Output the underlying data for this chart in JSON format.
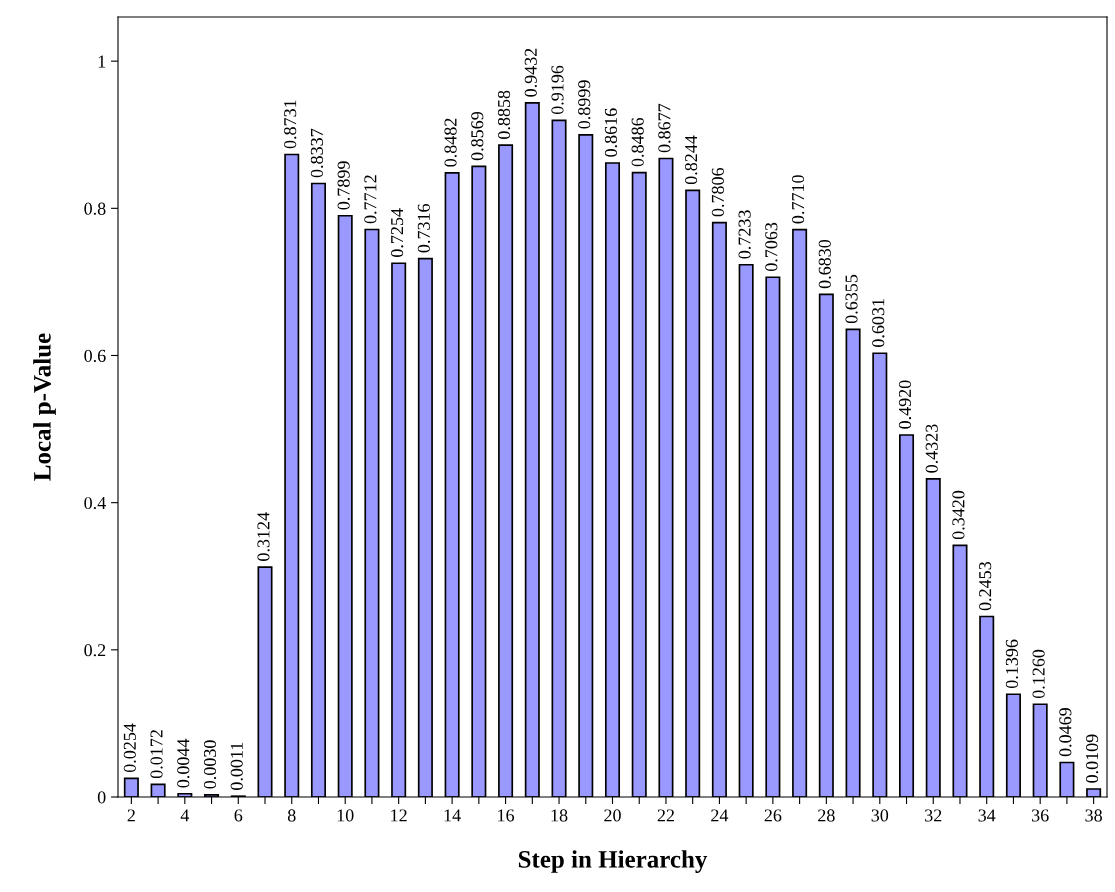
{
  "chart_data": {
    "type": "bar",
    "xlabel": "Step in Hierarchy",
    "ylabel": "Local p-Value",
    "categories": [
      "2",
      null,
      "4",
      null,
      "6",
      null,
      "8",
      null,
      "10",
      null,
      "12",
      null,
      "14",
      null,
      "16",
      null,
      "18",
      null,
      "20",
      null,
      "22",
      null,
      "24",
      null,
      "26",
      null,
      "28",
      null,
      "30",
      null,
      "32",
      null,
      "34",
      null,
      "36",
      null,
      "38"
    ],
    "values": [
      0.0254,
      0.0172,
      0.0044,
      0.003,
      0.0011,
      0.3124,
      0.8731,
      0.8337,
      0.7899,
      0.7712,
      0.7254,
      0.7316,
      0.8482,
      0.8569,
      0.8858,
      0.9432,
      0.9196,
      0.8999,
      0.8616,
      0.8486,
      0.8677,
      0.8244,
      0.7806,
      0.7233,
      0.7063,
      0.771,
      0.683,
      0.6355,
      0.6031,
      0.492,
      0.4323,
      0.342,
      0.2453,
      0.1396,
      0.126,
      0.0469,
      0.0109
    ],
    "value_labels": [
      "0.0254",
      "0.0172",
      "0.0044",
      "0.0030",
      "0.0011",
      "0.3124",
      "0.8731",
      "0.8337",
      "0.7899",
      "0.7712",
      "0.7254",
      "0.7316",
      "0.8482",
      "0.8569",
      "0.8858",
      "0.9432",
      "0.9196",
      "0.8999",
      "0.8616",
      "0.8486",
      "0.8677",
      "0.8244",
      "0.7806",
      "0.7233",
      "0.7063",
      "0.7710",
      "0.6830",
      "0.6355",
      "0.6031",
      "0.4920",
      "0.4323",
      "0.3420",
      "0.2453",
      "0.1396",
      "0.1260",
      "0.0469",
      "0.0109"
    ],
    "color": "#9999ff",
    "ylim": [
      0,
      1.06
    ],
    "yticks": [
      0,
      0.2,
      0.4,
      0.6,
      0.8,
      1
    ],
    "grid": false,
    "legend": false
  }
}
